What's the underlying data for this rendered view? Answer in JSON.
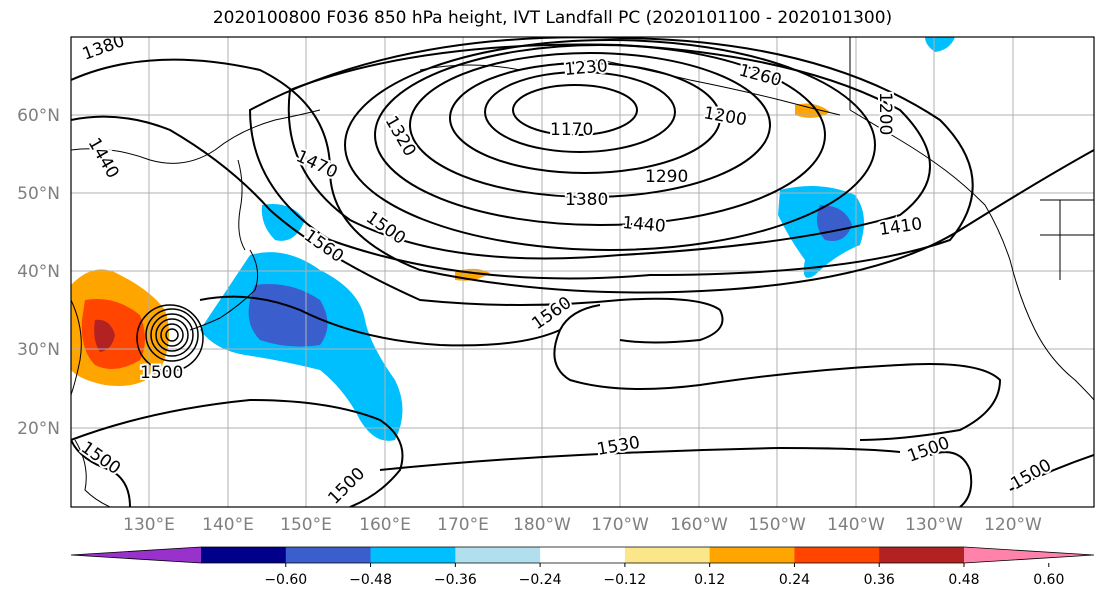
{
  "title": "2020100800 F036 850 hPa height, IVT Landfall PC (2020101100 - 2020101300)",
  "map": {
    "lat_labels": [
      "60°N",
      "50°N",
      "40°N",
      "30°N",
      "20°N"
    ],
    "lon_labels": [
      "130°E",
      "140°E",
      "150°E",
      "160°E",
      "170°E",
      "180°W",
      "170°W",
      "160°W",
      "150°W",
      "140°W",
      "130°W",
      "120°W"
    ],
    "contour_labels": [
      "1380",
      "1440",
      "1470",
      "1500",
      "1560",
      "1230",
      "1260",
      "1170",
      "1200",
      "1290",
      "1380",
      "1440",
      "1410",
      "1560",
      "1500",
      "1530",
      "1500",
      "1500",
      "1500",
      "1500",
      "1320",
      "1200"
    ]
  },
  "colorbar": {
    "ticks": [
      "−0.60",
      "−0.48",
      "−0.36",
      "−0.24",
      "−0.12",
      "0.12",
      "0.24",
      "0.36",
      "0.48",
      "0.60"
    ],
    "colors": [
      "#9932cc",
      "#00008b",
      "#3a5fcd",
      "#00bfff",
      "#b2dfee",
      "#ffffff",
      "#fce68a",
      "#ffa500",
      "#ff4500",
      "#b22222",
      "#ff82ab"
    ]
  }
}
